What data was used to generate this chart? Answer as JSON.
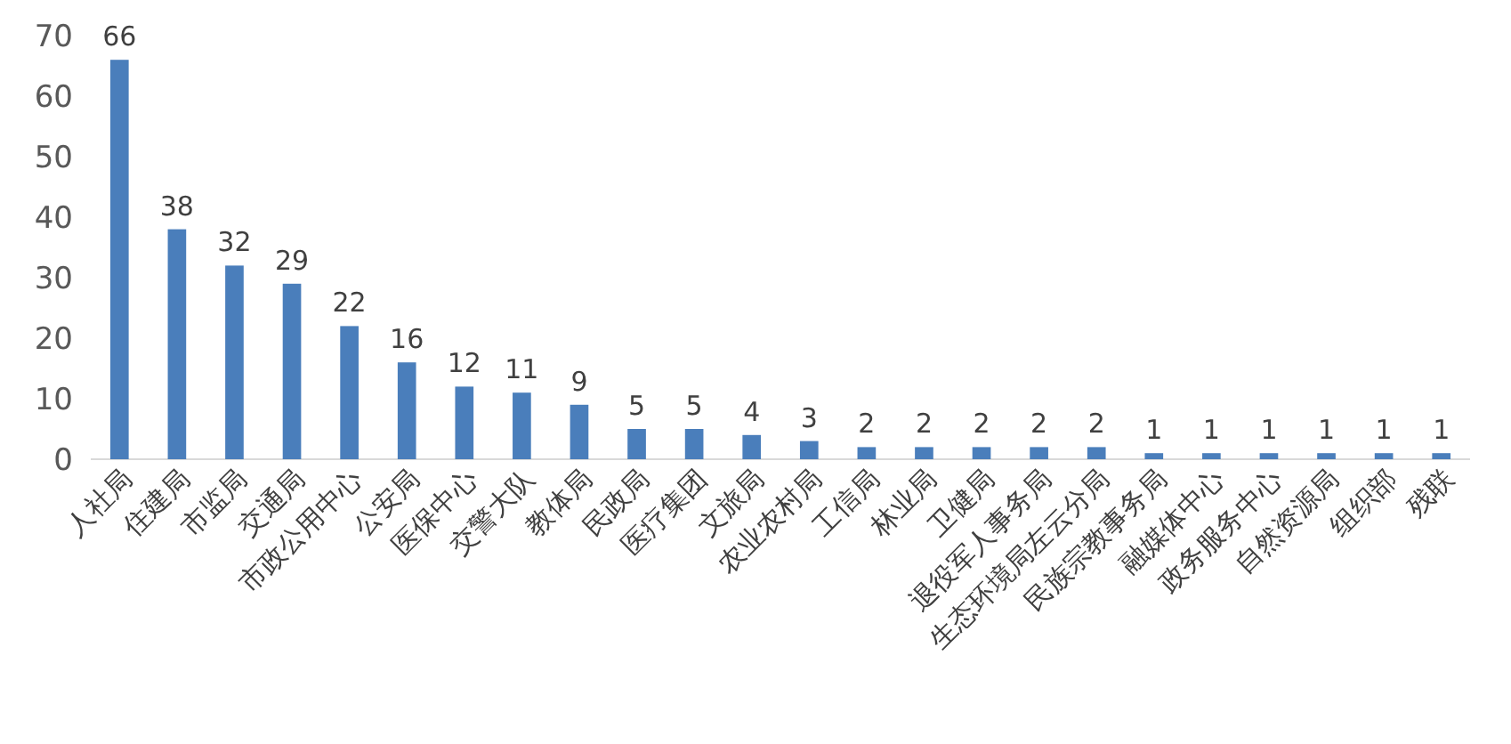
{
  "chart_data": {
    "type": "bar",
    "categories": [
      "人社局",
      "住建局",
      "市监局",
      "交通局",
      "市政公用中心",
      "公安局",
      "医保中心",
      "交警大队",
      "教体局",
      "民政局",
      "医疗集团",
      "文旅局",
      "农业农村局",
      "工信局",
      "林业局",
      "卫健局",
      "退役军人事务局",
      "生态环境局左云分局",
      "民族宗教事务局",
      "融媒体中心",
      "政务服务中心",
      "自然资源局",
      "组织部",
      "残联"
    ],
    "values": [
      66,
      38,
      32,
      29,
      22,
      16,
      12,
      11,
      9,
      5,
      5,
      4,
      3,
      2,
      2,
      2,
      2,
      2,
      1,
      1,
      1,
      1,
      1,
      1
    ],
    "color": "#4a7ebb",
    "ylim": [
      0,
      70
    ],
    "yticks": [
      0,
      10,
      20,
      30,
      40,
      50,
      60,
      70
    ],
    "data_labels": true
  }
}
